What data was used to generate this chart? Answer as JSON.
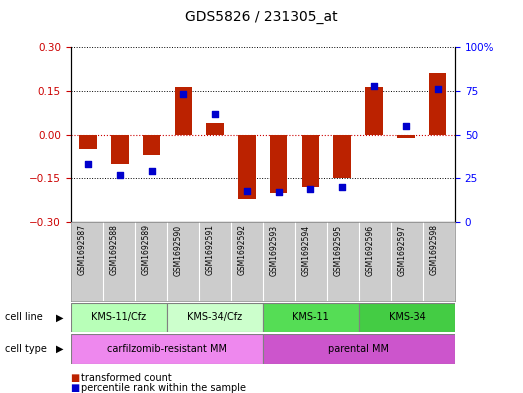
{
  "title": "GDS5826 / 231305_at",
  "samples": [
    "GSM1692587",
    "GSM1692588",
    "GSM1692589",
    "GSM1692590",
    "GSM1692591",
    "GSM1692592",
    "GSM1692593",
    "GSM1692594",
    "GSM1692595",
    "GSM1692596",
    "GSM1692597",
    "GSM1692598"
  ],
  "transformed_count": [
    -0.05,
    -0.1,
    -0.07,
    0.163,
    0.04,
    -0.22,
    -0.2,
    -0.18,
    -0.15,
    0.163,
    -0.01,
    0.21
  ],
  "percentile_rank": [
    33,
    27,
    29,
    73,
    62,
    18,
    17,
    19,
    20,
    78,
    55,
    76
  ],
  "cell_line_groups": [
    {
      "label": "KMS-11/Cfz",
      "start": 0,
      "end": 3,
      "color": "#b8ffb8"
    },
    {
      "label": "KMS-34/Cfz",
      "start": 3,
      "end": 6,
      "color": "#ccffcc"
    },
    {
      "label": "KMS-11",
      "start": 6,
      "end": 9,
      "color": "#55dd55"
    },
    {
      "label": "KMS-34",
      "start": 9,
      "end": 12,
      "color": "#44cc44"
    }
  ],
  "cell_type_groups": [
    {
      "label": "carfilzomib-resistant MM",
      "start": 0,
      "end": 6,
      "color": "#ee88ee"
    },
    {
      "label": "parental MM",
      "start": 6,
      "end": 12,
      "color": "#cc55cc"
    }
  ],
  "ylim": [
    -0.3,
    0.3
  ],
  "yticks_left": [
    -0.3,
    -0.15,
    0.0,
    0.15,
    0.3
  ],
  "yticks_right": [
    0,
    25,
    50,
    75,
    100
  ],
  "bar_color": "#bb2200",
  "dot_color": "#0000cc",
  "bar_width": 0.55,
  "dot_size": 22,
  "legend_red": "transformed count",
  "legend_blue": "percentile rank within the sample",
  "cell_line_label": "cell line",
  "cell_type_label": "cell type",
  "sample_bg_color": "#cccccc",
  "zero_line_color": "#cc0000"
}
